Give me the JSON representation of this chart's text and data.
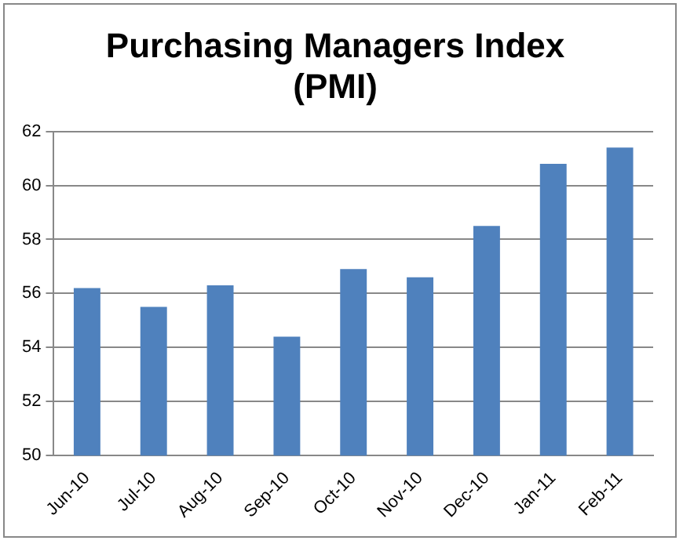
{
  "chart_data": {
    "type": "bar",
    "title": "Purchasing Managers Index\n(PMI)",
    "categories": [
      "Jun-10",
      "Jul-10",
      "Aug-10",
      "Sep-10",
      "Oct-10",
      "Nov-10",
      "Dec-10",
      "Jan-11",
      "Feb-11"
    ],
    "values": [
      56.2,
      55.5,
      56.3,
      54.4,
      56.9,
      56.6,
      58.5,
      60.8,
      61.4
    ],
    "color": "#4f81bd",
    "ylim": [
      50,
      62
    ],
    "yticks": [
      50,
      52,
      54,
      56,
      58,
      60,
      62
    ],
    "grid": "y",
    "legend": false
  }
}
